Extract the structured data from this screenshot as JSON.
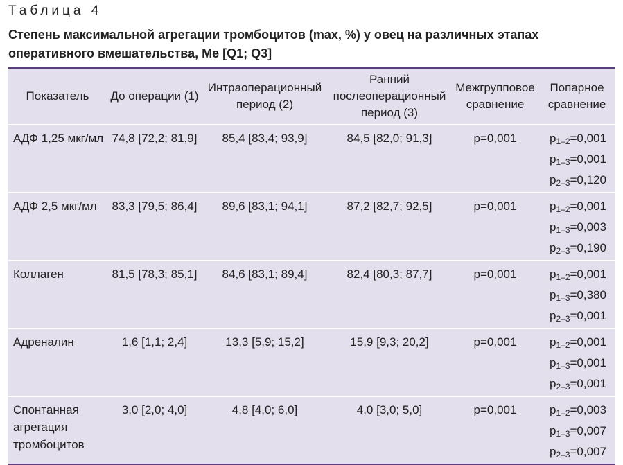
{
  "header": {
    "label": "Таблица 4",
    "title": "Степень максимальной агрегации тромбоцитов (max, %) у овец на различных этапах оперативного вмешательства, Me [Q1; Q3]"
  },
  "table": {
    "columns": [
      "Показатель",
      "До операции (1)",
      "Интраоперационный период (2)",
      "Ранний послеоперационный период (3)",
      "Межгрупповое сравнение",
      "Попарное сравнение"
    ],
    "rows": [
      [
        "АДФ 1,25 мкг/мл",
        "74,8 [72,2; 81,9]",
        "85,4 [83,4; 93,9]",
        "84,5 [82,0; 91,3]",
        "p=0,001",
        [
          [
            "p",
            "1–2",
            "=0,001"
          ],
          [
            "p",
            "1–3",
            "=0,001"
          ],
          [
            "p",
            "2–3",
            "=0,120"
          ]
        ]
      ],
      [
        "АДФ 2,5 мкг/мл",
        "83,3 [79,5; 86,4]",
        "89,6 [83,1; 94,1]",
        "87,2 [82,7; 92,5]",
        "p=0,001",
        [
          [
            "p",
            "1–2",
            "=0,001"
          ],
          [
            "p",
            "1–3",
            "=0,003"
          ],
          [
            "p",
            "2–3",
            "=0,190"
          ]
        ]
      ],
      [
        "Коллаген",
        "81,5 [78,3; 85,1]",
        "84,6 [83,1; 89,4]",
        "82,4 [80,3; 87,7]",
        "p=0,001",
        [
          [
            "p",
            "1–2",
            "=0,001"
          ],
          [
            "p",
            "1–3",
            "=0,380"
          ],
          [
            "p",
            "2–3",
            "=0,001"
          ]
        ]
      ],
      [
        "Адреналин",
        "1,6 [1,1; 2,4]",
        "13,3 [5,9; 15,2]",
        "15,9 [9,3; 20,2]",
        "p=0,001",
        [
          [
            "p",
            "1–2",
            "=0,001"
          ],
          [
            "p",
            "1–3",
            "=0,001"
          ],
          [
            "p",
            "2–3",
            "=0,001"
          ]
        ]
      ],
      [
        "Спонтанная агрегация тромбоцитов",
        "3,0 [2,0; 4,0]",
        "4,8 [4,0; 6,0]",
        "4,0 [3,0; 5,0]",
        "p=0,001",
        [
          [
            "p",
            "1–2",
            "=0,003"
          ],
          [
            "p",
            "1–3",
            "=0,007"
          ],
          [
            "p",
            "2–3",
            "=0,007"
          ]
        ]
      ]
    ]
  }
}
